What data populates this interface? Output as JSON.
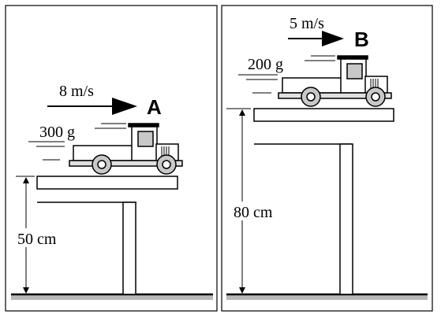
{
  "panel_a": {
    "speed": "8 m/s",
    "label": "A",
    "mass": "300 g",
    "height": "50 cm"
  },
  "panel_b": {
    "speed": "5 m/s",
    "label": "B",
    "mass": "200 g",
    "height": "80 cm"
  }
}
